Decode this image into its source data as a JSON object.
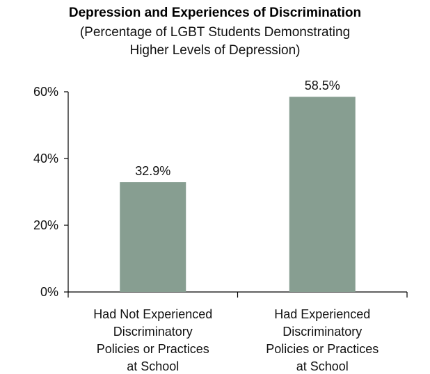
{
  "chart_data": {
    "type": "bar",
    "title": "Depression and Experiences of Discrimination",
    "subtitle_lines": [
      "(Percentage of LGBT Students Demonstrating",
      "Higher Levels of Depression)"
    ],
    "categories": [
      [
        "Had Not Experienced",
        "Discriminatory",
        "Policies or Practices",
        "at School"
      ],
      [
        "Had Experienced",
        "Discriminatory",
        "Policies or Practices",
        "at School"
      ]
    ],
    "values": [
      32.9,
      58.5
    ],
    "value_labels": [
      "32.9%",
      "58.5%"
    ],
    "ylim": [
      0,
      60
    ],
    "yticks": [
      0,
      20,
      40,
      60
    ],
    "ytick_labels": [
      "0%",
      "20%",
      "40%",
      "60%"
    ],
    "xlabel": "",
    "ylabel": "",
    "bar_color": "#879e91",
    "grid": false,
    "legend": "none"
  }
}
